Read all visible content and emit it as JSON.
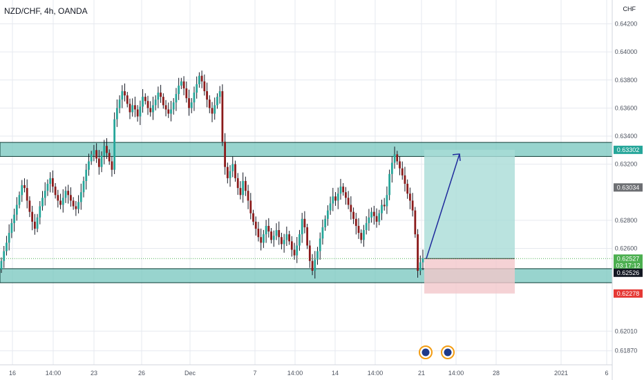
{
  "header": {
    "title": "NZD/CHF, 4h, OANDA",
    "currency": "CHF"
  },
  "colors": {
    "bull": "#26a69a",
    "bear": "#8b1a1a",
    "wick": "#131722",
    "zone_fill": "#76c6be",
    "zone_stroke": "#0d3b35",
    "target_fill": "#a9dcd7",
    "stop_fill": "#f3c7cb",
    "arrow": "#1f2a9c",
    "grid": "#e6e9ef",
    "axis_text": "#4c525e",
    "badge_green": "#4caf50",
    "badge_dark": "#131722",
    "badge_grey": "#6d6f73",
    "badge_red": "#e53935"
  },
  "chart_data": {
    "type": "candlestick",
    "title": "NZD/CHF, 4h, OANDA",
    "ylim": [
      0.6177,
      0.6437
    ],
    "y_ticks": [
      "0.64200",
      "0.64000",
      "0.63800",
      "0.63600",
      "0.63400",
      "0.63200",
      "0.62800",
      "0.62600",
      "0.62010",
      "0.61870"
    ],
    "x_ticks": [
      "16",
      "14:00",
      "23",
      "26",
      "Dec",
      "7",
      "14:00",
      "14",
      "14:00",
      "21",
      "14:00",
      "28",
      "2021",
      "6"
    ],
    "price_badges": [
      {
        "label": "0.63302",
        "value": 0.63302,
        "color": "green_teal"
      },
      {
        "label": "0.63034",
        "value": 0.63034,
        "color": "grey"
      },
      {
        "label": "0.62527",
        "value": 0.62527,
        "color": "green"
      },
      {
        "label": "03:17:12",
        "value": 0.62476,
        "color": "green"
      },
      {
        "label": "0.62526",
        "value": 0.62426,
        "color": "dark"
      },
      {
        "label": "0.62278",
        "value": 0.62278,
        "color": "red"
      }
    ],
    "zones": [
      {
        "name": "resistance",
        "from": 0.63255,
        "to": 0.63355
      },
      {
        "name": "support",
        "from": 0.62355,
        "to": 0.62455
      }
    ],
    "position": {
      "entry": 0.62527,
      "target": 0.63302,
      "stop": 0.62278
    },
    "closes": [
      0.6251,
      0.6258,
      0.6264,
      0.6271,
      0.6278,
      0.6284,
      0.6291,
      0.6298,
      0.6305,
      0.6303,
      0.6294,
      0.6286,
      0.6279,
      0.6274,
      0.6282,
      0.629,
      0.6296,
      0.6301,
      0.6306,
      0.631,
      0.6304,
      0.6298,
      0.6294,
      0.6291,
      0.6296,
      0.6301,
      0.6298,
      0.6294,
      0.629,
      0.6288,
      0.6293,
      0.63,
      0.6308,
      0.6316,
      0.6322,
      0.6327,
      0.633,
      0.6324,
      0.6318,
      0.6326,
      0.6333,
      0.6328,
      0.6322,
      0.6316,
      0.6352,
      0.636,
      0.6366,
      0.6372,
      0.6369,
      0.6363,
      0.6357,
      0.6362,
      0.6359,
      0.6354,
      0.6361,
      0.6368,
      0.6365,
      0.636,
      0.6357,
      0.6362,
      0.6366,
      0.6371,
      0.6368,
      0.6362,
      0.6359,
      0.6356,
      0.6359,
      0.6364,
      0.637,
      0.6376,
      0.6379,
      0.6374,
      0.6367,
      0.636,
      0.6364,
      0.6371,
      0.6377,
      0.6383,
      0.6379,
      0.6372,
      0.6366,
      0.636,
      0.6356,
      0.6362,
      0.6368,
      0.6372,
      0.6336,
      0.6318,
      0.631,
      0.6315,
      0.632,
      0.631,
      0.6303,
      0.6298,
      0.6308,
      0.6301,
      0.6294,
      0.6285,
      0.6279,
      0.6274,
      0.6268,
      0.6264,
      0.627,
      0.6276,
      0.6272,
      0.6266,
      0.6269,
      0.6273,
      0.6268,
      0.6263,
      0.6266,
      0.627,
      0.6265,
      0.6259,
      0.6255,
      0.6262,
      0.627,
      0.6281,
      0.6275,
      0.6262,
      0.6251,
      0.6244,
      0.6252,
      0.6258,
      0.6267,
      0.6275,
      0.6281,
      0.6287,
      0.6292,
      0.6297,
      0.6294,
      0.6299,
      0.6304,
      0.63,
      0.6296,
      0.6291,
      0.6286,
      0.6281,
      0.6276,
      0.6271,
      0.6266,
      0.6273,
      0.6278,
      0.6282,
      0.6286,
      0.6283,
      0.6279,
      0.6285,
      0.6291,
      0.629,
      0.6298,
      0.6313,
      0.6321,
      0.6327,
      0.6322,
      0.6317,
      0.6312,
      0.6306,
      0.6299,
      0.6294,
      0.6287,
      0.627,
      0.6244,
      0.625,
      0.6253
    ]
  }
}
